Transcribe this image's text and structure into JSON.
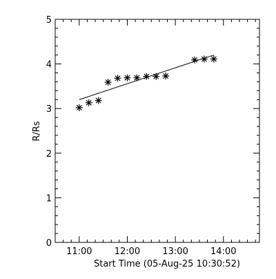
{
  "chart_data": {
    "type": "scatter",
    "title": "",
    "xlabel": "Start Time (05-Aug-25 10:30:52)",
    "ylabel": "R/Rs",
    "x_axis_unit": "time of day (hours)",
    "xlim": [
      "10:30",
      "14:45"
    ],
    "ylim": [
      0,
      5
    ],
    "x_ticks": [
      {
        "value": "11:00",
        "label": "11:00"
      },
      {
        "value": "12:00",
        "label": "12:00"
      },
      {
        "value": "13:00",
        "label": "13:00"
      },
      {
        "value": "14:00",
        "label": "14:00"
      }
    ],
    "y_ticks": [
      0,
      1,
      2,
      3,
      4,
      5
    ],
    "y_tick_labels": [
      "0",
      "1",
      "2",
      "3",
      "4",
      "5"
    ],
    "grid": false,
    "legend": "none",
    "marker": "asterisk",
    "marker_color": "#000000",
    "series": [
      {
        "points": [
          {
            "x": "11:00",
            "y": 3.02
          },
          {
            "x": "11:12",
            "y": 3.13
          },
          {
            "x": "11:24",
            "y": 3.18
          },
          {
            "x": "11:36",
            "y": 3.59
          },
          {
            "x": "11:48",
            "y": 3.68
          },
          {
            "x": "12:00",
            "y": 3.69
          },
          {
            "x": "12:12",
            "y": 3.69
          },
          {
            "x": "12:24",
            "y": 3.72
          },
          {
            "x": "12:36",
            "y": 3.72
          },
          {
            "x": "12:48",
            "y": 3.73
          },
          {
            "x": "13:24",
            "y": 4.09
          },
          {
            "x": "13:36",
            "y": 4.11
          },
          {
            "x": "13:48",
            "y": 4.11
          }
        ]
      }
    ],
    "fit_line": {
      "type": "linear",
      "from": {
        "x": "11:00",
        "y": 3.2
      },
      "to": {
        "x": "13:48",
        "y": 4.2
      }
    }
  }
}
